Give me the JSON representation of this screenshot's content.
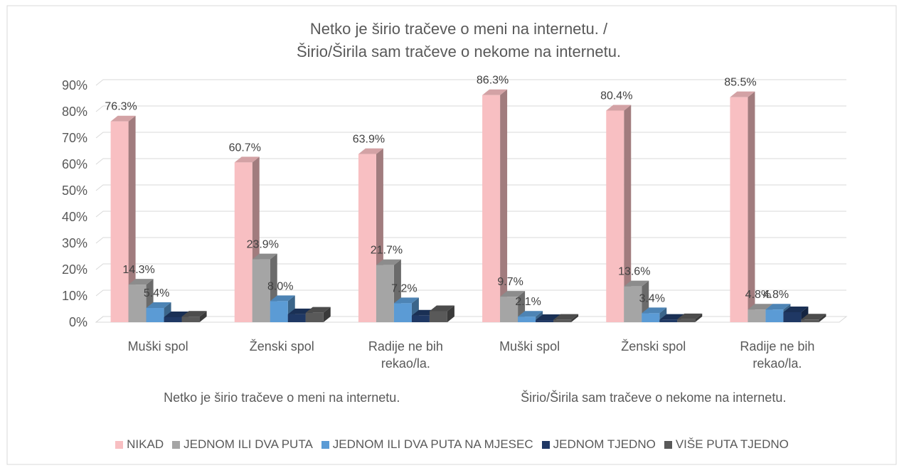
{
  "chart_data": {
    "type": "bar3d",
    "title": "Netko je širio tračeve o meni na internetu. /",
    "subtitle": "Širio/Širila sam tračeve o nekome na internetu.",
    "groups": [
      "Netko je širio tračeve o meni na internetu.",
      "Širio/Širila sam tračeve o nekome na internetu."
    ],
    "categories": [
      "Muški spol",
      "Ženski spol",
      "Radije ne bih rekao/la.",
      "Muški spol",
      "Ženski spol",
      "Radije ne bih rekao/la."
    ],
    "series": [
      {
        "name": "NIKAD",
        "color": "#f8bfc2",
        "values": [
          76.3,
          60.7,
          63.9,
          86.3,
          80.4,
          85.5
        ],
        "value_labels": [
          "76.3%",
          "60.7%",
          "63.9%",
          "86.3%",
          "80.4%",
          "85.5%"
        ]
      },
      {
        "name": "JEDNOM ILI DVA PUTA",
        "color": "#a5a5a5",
        "values": [
          14.3,
          23.9,
          21.7,
          9.7,
          13.6,
          4.8
        ],
        "value_labels": [
          "14.3%",
          "23.9%",
          "21.7%",
          "9.7%",
          "13.6%",
          "4.8%"
        ]
      },
      {
        "name": "JEDNOM ILI DVA PUTA NA MJESEC",
        "color": "#5b9bd5",
        "values": [
          5.4,
          8.0,
          7.2,
          2.1,
          3.4,
          4.8
        ],
        "value_labels": [
          "5.4%",
          "8.0%",
          "7.2%",
          "2.1%",
          "3.4%",
          "4.8%"
        ]
      },
      {
        "name": "JEDNOM TJEDNO",
        "color": "#1f3864",
        "values": [
          1.9,
          3.0,
          2.5,
          0.8,
          0.9,
          3.8
        ]
      },
      {
        "name": "VIŠE PUTA TJEDNO",
        "color": "#595959",
        "values": [
          2.1,
          3.6,
          4.2,
          0.9,
          1.1,
          1.0
        ]
      }
    ],
    "ylim": [
      0,
      90
    ],
    "yticks": [
      {
        "value": 0,
        "label": "0%"
      },
      {
        "value": 10,
        "label": "10%"
      },
      {
        "value": 20,
        "label": "20%"
      },
      {
        "value": 30,
        "label": "30%"
      },
      {
        "value": 40,
        "label": "40%"
      },
      {
        "value": 50,
        "label": "50%"
      },
      {
        "value": 60,
        "label": "60%"
      },
      {
        "value": 70,
        "label": "70%"
      },
      {
        "value": 80,
        "label": "80%"
      },
      {
        "value": 90,
        "label": "90%"
      }
    ],
    "grid": true
  }
}
